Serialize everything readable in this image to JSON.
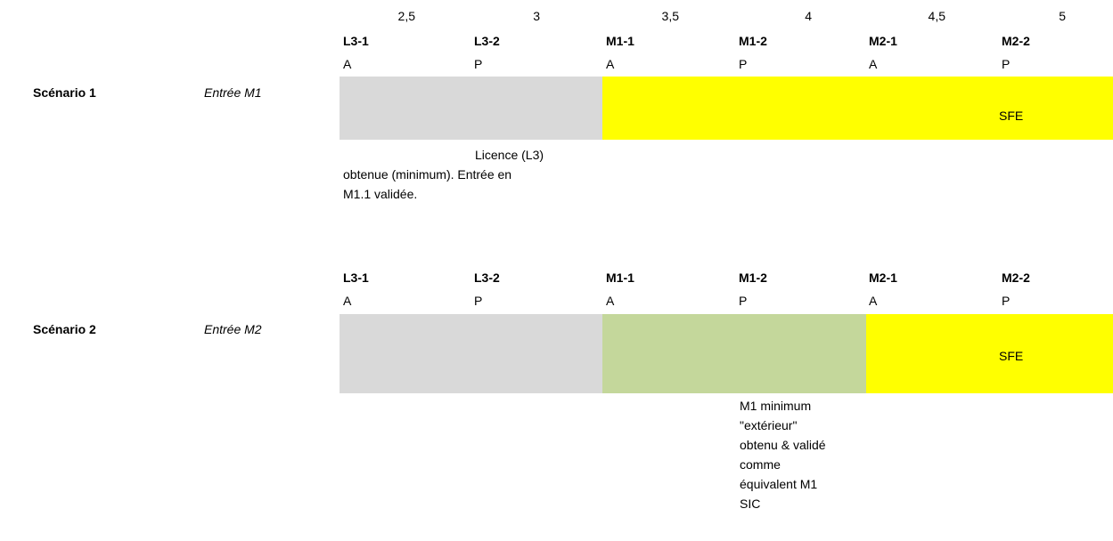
{
  "scale_ticks": [
    "2,5",
    "3",
    "3,5",
    "4",
    "4,5",
    "5"
  ],
  "scenario1": {
    "label": "Scénario 1",
    "entry": "Entrée M1",
    "semesters": [
      {
        "code": "L3-1",
        "period": "A"
      },
      {
        "code": "L3-2",
        "period": "P"
      },
      {
        "code": "M1-1",
        "period": "A"
      },
      {
        "code": "M1-2",
        "period": "P"
      },
      {
        "code": "M2-1",
        "period": "A"
      },
      {
        "code": "M2-2",
        "period": "P"
      }
    ],
    "sfe_label": "SFE",
    "note_lines": [
      "Licence (L3)",
      "obtenue (minimum). Entrée en",
      "M1.1 validée."
    ]
  },
  "scenario2": {
    "label": "Scénario 2",
    "entry": "Entrée M2",
    "semesters": [
      {
        "code": "L3-1",
        "period": "A"
      },
      {
        "code": "L3-2",
        "period": "P"
      },
      {
        "code": "M1-1",
        "period": "A"
      },
      {
        "code": "M1-2",
        "period": "P"
      },
      {
        "code": "M2-1",
        "period": "A"
      },
      {
        "code": "M2-2",
        "period": "P"
      }
    ],
    "sfe_label": "SFE",
    "note_lines": [
      "M1 minimum",
      "\"extérieur\"",
      "obtenu & validé",
      "comme",
      "équivalent M1",
      "SIC"
    ]
  },
  "colors": {
    "grey_bar": "#d9d9d9",
    "yellow_bar": "#ffff00",
    "green_bar": "#c4d79b"
  }
}
